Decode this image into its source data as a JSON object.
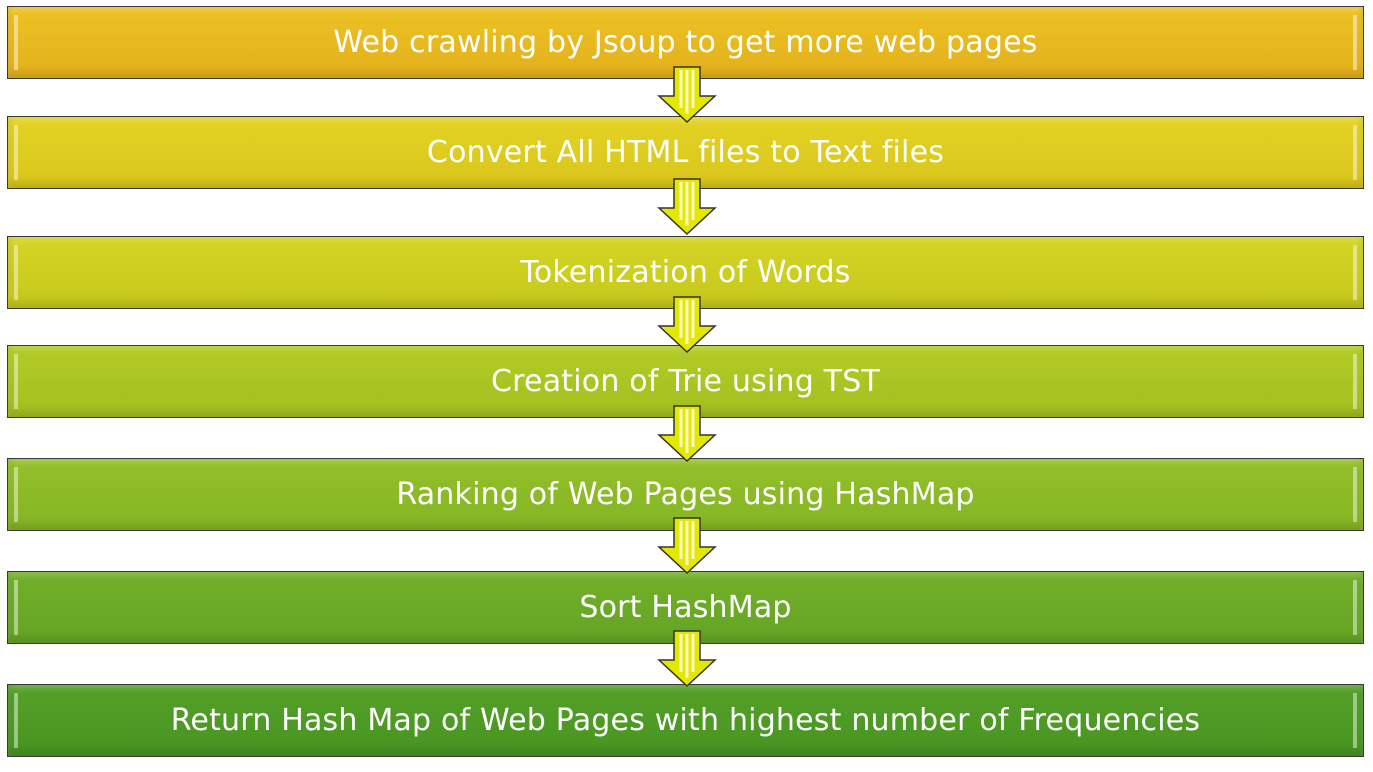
{
  "steps": [
    {
      "label": "Web crawling by Jsoup to get more web pages",
      "color_top": "#ecc224",
      "color_bottom": "#e3b01b"
    },
    {
      "label": "Convert All HTML files to Text files",
      "color_top": "#e3d324",
      "color_bottom": "#d9c51c"
    },
    {
      "label": "Tokenization of Words",
      "color_top": "#d4d424",
      "color_bottom": "#c5c81c"
    },
    {
      "label": "Creation of Trie using TST",
      "color_top": "#b3cb26",
      "color_bottom": "#a2bf1f"
    },
    {
      "label": "Ranking of Web Pages using HashMap",
      "color_top": "#94c02a",
      "color_bottom": "#84b524"
    },
    {
      "label": "Sort HashMap",
      "color_top": "#72b02a",
      "color_bottom": "#64a424"
    },
    {
      "label": "Return Hash Map of Web Pages with highest number of Frequencies",
      "color_top": "#54a028",
      "color_bottom": "#479421"
    }
  ],
  "arrow_icon": "down-arrow-icon",
  "arrow_fill": "#e4e800"
}
